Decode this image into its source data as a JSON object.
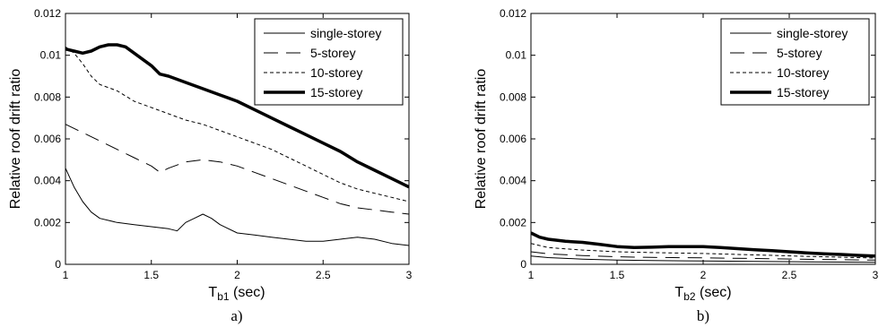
{
  "chart_data": [
    {
      "type": "line",
      "panel_label": "a)",
      "xlabel_main": "T",
      "xlabel_sub": "b1",
      "xlabel_unit": " (sec)",
      "ylabel": "Relative roof drift ratio",
      "xlim": [
        1,
        3
      ],
      "ylim": [
        0,
        0.012
      ],
      "xticks": [
        1,
        1.5,
        2,
        2.5,
        3
      ],
      "xtick_labels": [
        "1",
        "1.5",
        "2",
        "2.5",
        "3"
      ],
      "yticks": [
        0,
        0.002,
        0.004,
        0.006,
        0.008,
        0.01,
        0.012
      ],
      "ytick_labels": [
        "0",
        "0.002",
        "0.004",
        "0.006",
        "0.008",
        "0.01",
        "0.012"
      ],
      "grid": false,
      "legend_position": "top-right",
      "series": [
        {
          "name": "single-storey",
          "line_style": "solid-thin",
          "x": [
            1.0,
            1.05,
            1.1,
            1.15,
            1.2,
            1.3,
            1.4,
            1.5,
            1.6,
            1.65,
            1.7,
            1.75,
            1.8,
            1.85,
            1.9,
            2.0,
            2.1,
            2.2,
            2.3,
            2.4,
            2.5,
            2.6,
            2.7,
            2.8,
            2.9,
            3.0
          ],
          "y": [
            0.0046,
            0.0037,
            0.003,
            0.0025,
            0.0022,
            0.002,
            0.0019,
            0.0018,
            0.0017,
            0.0016,
            0.002,
            0.0022,
            0.0024,
            0.0022,
            0.0019,
            0.0015,
            0.0014,
            0.0013,
            0.0012,
            0.0011,
            0.0011,
            0.0012,
            0.0013,
            0.0012,
            0.001,
            0.0009
          ]
        },
        {
          "name": "5-storey",
          "line_style": "long-dash",
          "x": [
            1.0,
            1.1,
            1.2,
            1.3,
            1.4,
            1.5,
            1.55,
            1.6,
            1.7,
            1.8,
            1.9,
            2.0,
            2.1,
            2.2,
            2.3,
            2.4,
            2.5,
            2.6,
            2.7,
            2.8,
            2.9,
            3.0
          ],
          "y": [
            0.0067,
            0.0063,
            0.0059,
            0.0055,
            0.0051,
            0.0047,
            0.0044,
            0.0046,
            0.0049,
            0.005,
            0.0049,
            0.0047,
            0.0044,
            0.0041,
            0.0038,
            0.0035,
            0.0032,
            0.0029,
            0.0027,
            0.0026,
            0.0025,
            0.0024
          ]
        },
        {
          "name": "10-storey",
          "line_style": "short-dash",
          "x": [
            1.0,
            1.05,
            1.1,
            1.15,
            1.2,
            1.3,
            1.4,
            1.5,
            1.6,
            1.7,
            1.8,
            1.9,
            2.0,
            2.1,
            2.2,
            2.3,
            2.4,
            2.5,
            2.6,
            2.7,
            2.8,
            2.9,
            3.0
          ],
          "y": [
            0.0104,
            0.0101,
            0.0096,
            0.009,
            0.0086,
            0.0083,
            0.0078,
            0.0075,
            0.0072,
            0.0069,
            0.0067,
            0.0064,
            0.0061,
            0.0058,
            0.0055,
            0.0051,
            0.0047,
            0.0043,
            0.0039,
            0.0036,
            0.0034,
            0.0032,
            0.003
          ]
        },
        {
          "name": "15-storey",
          "line_style": "solid-thick",
          "x": [
            1.0,
            1.05,
            1.1,
            1.15,
            1.2,
            1.25,
            1.3,
            1.35,
            1.4,
            1.5,
            1.55,
            1.6,
            1.7,
            1.8,
            1.9,
            2.0,
            2.1,
            2.2,
            2.3,
            2.4,
            2.5,
            2.6,
            2.7,
            2.8,
            2.9,
            3.0
          ],
          "y": [
            0.0103,
            0.0102,
            0.0101,
            0.0102,
            0.0104,
            0.0105,
            0.0105,
            0.0104,
            0.0101,
            0.0095,
            0.0091,
            0.009,
            0.0087,
            0.0084,
            0.0081,
            0.0078,
            0.0074,
            0.007,
            0.0066,
            0.0062,
            0.0058,
            0.0054,
            0.0049,
            0.0045,
            0.0041,
            0.0037
          ]
        }
      ]
    },
    {
      "type": "line",
      "panel_label": "b)",
      "xlabel_main": "T",
      "xlabel_sub": "b2",
      "xlabel_unit": " (sec)",
      "ylabel": "Relative roof drift ratio",
      "xlim": [
        1,
        3
      ],
      "ylim": [
        0,
        0.012
      ],
      "xticks": [
        1,
        1.5,
        2,
        2.5,
        3
      ],
      "xtick_labels": [
        "1",
        "1.5",
        "2",
        "2.5",
        "3"
      ],
      "yticks": [
        0,
        0.002,
        0.004,
        0.006,
        0.008,
        0.01,
        0.012
      ],
      "ytick_labels": [
        "0",
        "0.002",
        "0.004",
        "0.006",
        "0.008",
        "0.01",
        "0.012"
      ],
      "grid": false,
      "legend_position": "top-right",
      "series": [
        {
          "name": "single-storey",
          "line_style": "solid-thin",
          "x": [
            1.0,
            1.1,
            1.3,
            1.5,
            1.7,
            2.0,
            2.3,
            2.6,
            3.0
          ],
          "y": [
            0.0004,
            0.00032,
            0.00025,
            0.0002,
            0.00018,
            0.00016,
            0.00014,
            0.00012,
            0.0001
          ]
        },
        {
          "name": "5-storey",
          "line_style": "long-dash",
          "x": [
            1.0,
            1.1,
            1.3,
            1.5,
            1.7,
            2.0,
            2.3,
            2.6,
            3.0
          ],
          "y": [
            0.0006,
            0.0005,
            0.00042,
            0.00036,
            0.00033,
            0.00031,
            0.00028,
            0.00024,
            0.0002
          ]
        },
        {
          "name": "10-storey",
          "line_style": "short-dash",
          "x": [
            1.0,
            1.1,
            1.3,
            1.5,
            1.7,
            2.0,
            2.3,
            2.6,
            3.0
          ],
          "y": [
            0.001,
            0.0008,
            0.00068,
            0.0006,
            0.00056,
            0.00052,
            0.00045,
            0.00038,
            0.0003
          ]
        },
        {
          "name": "15-storey",
          "line_style": "solid-thick",
          "x": [
            1.0,
            1.05,
            1.1,
            1.2,
            1.3,
            1.4,
            1.5,
            1.6,
            1.7,
            1.8,
            1.9,
            2.0,
            2.1,
            2.2,
            2.3,
            2.4,
            2.5,
            2.6,
            2.7,
            2.8,
            2.9,
            3.0
          ],
          "y": [
            0.0015,
            0.0013,
            0.0012,
            0.0011,
            0.00105,
            0.00095,
            0.00085,
            0.0008,
            0.00082,
            0.00085,
            0.00085,
            0.00085,
            0.0008,
            0.00075,
            0.0007,
            0.00065,
            0.0006,
            0.00055,
            0.0005,
            0.00047,
            0.00043,
            0.0004
          ]
        }
      ]
    }
  ]
}
